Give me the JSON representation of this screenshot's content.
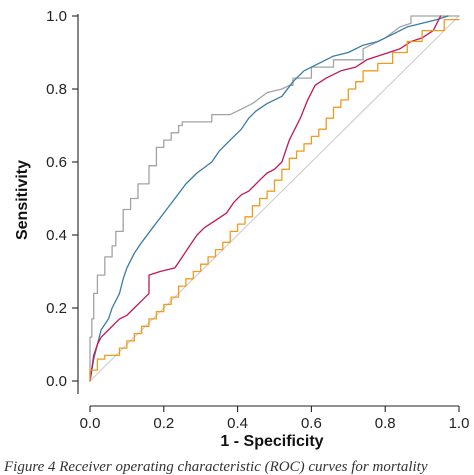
{
  "chart_data": {
    "type": "line",
    "title": "",
    "xlabel": "1 - Specificity",
    "ylabel": "Sensitivity",
    "xlim": [
      0,
      1
    ],
    "ylim": [
      0,
      1
    ],
    "xticks": [
      "0.0",
      "0.2",
      "0.4",
      "0.6",
      "0.8",
      "1.0"
    ],
    "yticks": [
      "0.0",
      "0.2",
      "0.4",
      "0.6",
      "0.8",
      "1.0"
    ],
    "grid": false,
    "legend": "none",
    "reference_line": {
      "x": [
        0,
        1
      ],
      "y": [
        0,
        1
      ],
      "color": "#cccccc"
    },
    "series": [
      {
        "color": "#a3a3a3",
        "x": [
          0,
          0,
          0.005,
          0.005,
          0.01,
          0.01,
          0.02,
          0.02,
          0.04,
          0.04,
          0.06,
          0.06,
          0.07,
          0.07,
          0.09,
          0.09,
          0.11,
          0.11,
          0.13,
          0.13,
          0.16,
          0.16,
          0.18,
          0.18,
          0.2,
          0.2,
          0.22,
          0.22,
          0.24,
          0.24,
          0.25,
          0.25,
          0.33,
          0.33,
          0.38,
          0.42,
          0.44,
          0.48,
          0.52,
          0.54,
          0.55,
          0.55,
          0.6,
          0.6,
          0.66,
          0.66,
          0.74,
          0.74,
          0.8,
          0.84,
          0.87,
          0.87,
          0.91,
          0.91,
          0.95,
          0.95,
          1.0
        ],
        "y": [
          0,
          0.12,
          0.12,
          0.17,
          0.17,
          0.24,
          0.24,
          0.29,
          0.29,
          0.34,
          0.34,
          0.37,
          0.37,
          0.41,
          0.41,
          0.47,
          0.47,
          0.5,
          0.5,
          0.54,
          0.54,
          0.59,
          0.59,
          0.64,
          0.64,
          0.66,
          0.66,
          0.68,
          0.68,
          0.7,
          0.7,
          0.71,
          0.71,
          0.73,
          0.73,
          0.75,
          0.76,
          0.79,
          0.8,
          0.81,
          0.81,
          0.83,
          0.83,
          0.86,
          0.86,
          0.88,
          0.88,
          0.91,
          0.94,
          0.97,
          0.98,
          1.0,
          1.0,
          1.0,
          1.0,
          1.0,
          1.0
        ]
      },
      {
        "color": "#3a7ca5",
        "x": [
          0,
          0.01,
          0.02,
          0.03,
          0.05,
          0.06,
          0.08,
          0.09,
          0.1,
          0.12,
          0.14,
          0.17,
          0.2,
          0.23,
          0.26,
          0.29,
          0.33,
          0.35,
          0.38,
          0.41,
          0.43,
          0.45,
          0.48,
          0.52,
          0.55,
          0.58,
          0.62,
          0.66,
          0.7,
          0.74,
          0.78,
          0.82,
          0.86,
          0.9,
          0.94,
          0.97
        ],
        "y": [
          0,
          0.06,
          0.1,
          0.14,
          0.17,
          0.2,
          0.24,
          0.28,
          0.31,
          0.35,
          0.38,
          0.42,
          0.46,
          0.5,
          0.54,
          0.57,
          0.6,
          0.63,
          0.66,
          0.69,
          0.72,
          0.74,
          0.76,
          0.78,
          0.82,
          0.85,
          0.87,
          0.89,
          0.9,
          0.92,
          0.93,
          0.95,
          0.97,
          0.98,
          0.99,
          1.0
        ]
      },
      {
        "color": "#c0185a",
        "x": [
          0,
          0.01,
          0.02,
          0.03,
          0.05,
          0.07,
          0.08,
          0.1,
          0.12,
          0.14,
          0.16,
          0.16,
          0.19,
          0.23,
          0.25,
          0.27,
          0.29,
          0.31,
          0.34,
          0.37,
          0.39,
          0.41,
          0.43,
          0.46,
          0.48,
          0.5,
          0.52,
          0.54,
          0.57,
          0.59,
          0.61,
          0.64,
          0.68,
          0.72,
          0.75,
          0.78,
          0.81,
          0.84,
          0.87,
          0.9,
          0.93,
          0.95
        ],
        "y": [
          0,
          0.07,
          0.1,
          0.12,
          0.14,
          0.16,
          0.17,
          0.18,
          0.2,
          0.22,
          0.24,
          0.29,
          0.3,
          0.31,
          0.34,
          0.37,
          0.4,
          0.42,
          0.44,
          0.46,
          0.49,
          0.51,
          0.52,
          0.55,
          0.57,
          0.58,
          0.6,
          0.66,
          0.72,
          0.77,
          0.81,
          0.83,
          0.85,
          0.86,
          0.88,
          0.89,
          0.9,
          0.91,
          0.93,
          0.94,
          0.96,
          1.0
        ]
      },
      {
        "color": "#ef9b1f",
        "x": [
          0,
          0,
          0.02,
          0.02,
          0.04,
          0.04,
          0.08,
          0.08,
          0.1,
          0.1,
          0.12,
          0.12,
          0.14,
          0.14,
          0.16,
          0.16,
          0.18,
          0.18,
          0.2,
          0.2,
          0.22,
          0.22,
          0.24,
          0.24,
          0.26,
          0.26,
          0.28,
          0.28,
          0.3,
          0.3,
          0.32,
          0.32,
          0.34,
          0.34,
          0.36,
          0.36,
          0.38,
          0.38,
          0.4,
          0.4,
          0.42,
          0.42,
          0.44,
          0.44,
          0.46,
          0.46,
          0.48,
          0.48,
          0.5,
          0.5,
          0.52,
          0.52,
          0.54,
          0.54,
          0.56,
          0.56,
          0.58,
          0.58,
          0.6,
          0.6,
          0.62,
          0.62,
          0.64,
          0.64,
          0.66,
          0.66,
          0.68,
          0.68,
          0.7,
          0.7,
          0.72,
          0.72,
          0.74,
          0.74,
          0.78,
          0.78,
          0.82,
          0.82,
          0.86,
          0.86,
          0.9,
          0.9,
          0.96,
          0.96,
          1.0
        ],
        "y": [
          0,
          0.03,
          0.03,
          0.06,
          0.06,
          0.07,
          0.07,
          0.09,
          0.09,
          0.11,
          0.11,
          0.13,
          0.13,
          0.15,
          0.15,
          0.17,
          0.17,
          0.19,
          0.19,
          0.21,
          0.21,
          0.23,
          0.23,
          0.26,
          0.26,
          0.28,
          0.28,
          0.3,
          0.3,
          0.32,
          0.32,
          0.34,
          0.34,
          0.36,
          0.36,
          0.38,
          0.38,
          0.41,
          0.41,
          0.43,
          0.43,
          0.45,
          0.45,
          0.48,
          0.48,
          0.5,
          0.5,
          0.52,
          0.52,
          0.55,
          0.55,
          0.58,
          0.58,
          0.61,
          0.61,
          0.63,
          0.63,
          0.65,
          0.65,
          0.67,
          0.67,
          0.69,
          0.69,
          0.72,
          0.72,
          0.75,
          0.75,
          0.77,
          0.77,
          0.8,
          0.8,
          0.82,
          0.82,
          0.85,
          0.85,
          0.87,
          0.87,
          0.9,
          0.9,
          0.93,
          0.93,
          0.96,
          0.96,
          0.99,
          0.99
        ]
      }
    ]
  },
  "caption": "Figure 4   Receiver operating characteristic (ROC) curves for mortality"
}
